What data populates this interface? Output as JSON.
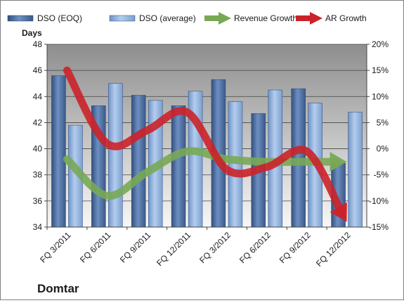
{
  "chart_data": {
    "type": "bar",
    "title": "",
    "company": "Domtar",
    "left_axis": {
      "label": "Days",
      "min": 34,
      "max": 48,
      "ticks": [
        "34",
        "36",
        "38",
        "40",
        "42",
        "44",
        "46",
        "48"
      ]
    },
    "right_axis": {
      "min": -15,
      "max": 20,
      "ticks": [
        "-15%",
        "-10%",
        "-5%",
        "0%",
        "5%",
        "10%",
        "15%",
        "20%"
      ]
    },
    "categories": [
      "FQ 3/2011",
      "FQ 6/2011",
      "FQ 9/2011",
      "FQ 12/2011",
      "FQ 3/2012",
      "FQ 6/2012",
      "FQ 9/2012",
      "FQ 12/2012"
    ],
    "series": [
      {
        "name": "DSO (EOQ)",
        "kind": "bar",
        "axis": "left",
        "color": "#4a6a9c",
        "values": [
          45.6,
          43.3,
          44.1,
          43.3,
          45.3,
          42.7,
          44.6,
          38.9
        ]
      },
      {
        "name": "DSO (average)",
        "kind": "bar",
        "axis": "left",
        "color": "#8eb0dc",
        "values": [
          41.8,
          45.0,
          43.7,
          44.4,
          43.6,
          44.5,
          43.5,
          42.8
        ]
      },
      {
        "name": "Revenue Growth",
        "kind": "line",
        "axis": "right",
        "color": "#78a855",
        "values": [
          -2.0,
          -9.0,
          -4.5,
          -0.5,
          -2.0,
          -2.5,
          -2.5,
          -2.5
        ]
      },
      {
        "name": "AR Growth",
        "kind": "line",
        "axis": "right",
        "color": "#cc2229",
        "values": [
          15.0,
          1.0,
          3.5,
          7.0,
          -4.0,
          -3.5,
          -0.5,
          -14.0
        ]
      }
    ],
    "grid": true,
    "legend_position": "top"
  }
}
